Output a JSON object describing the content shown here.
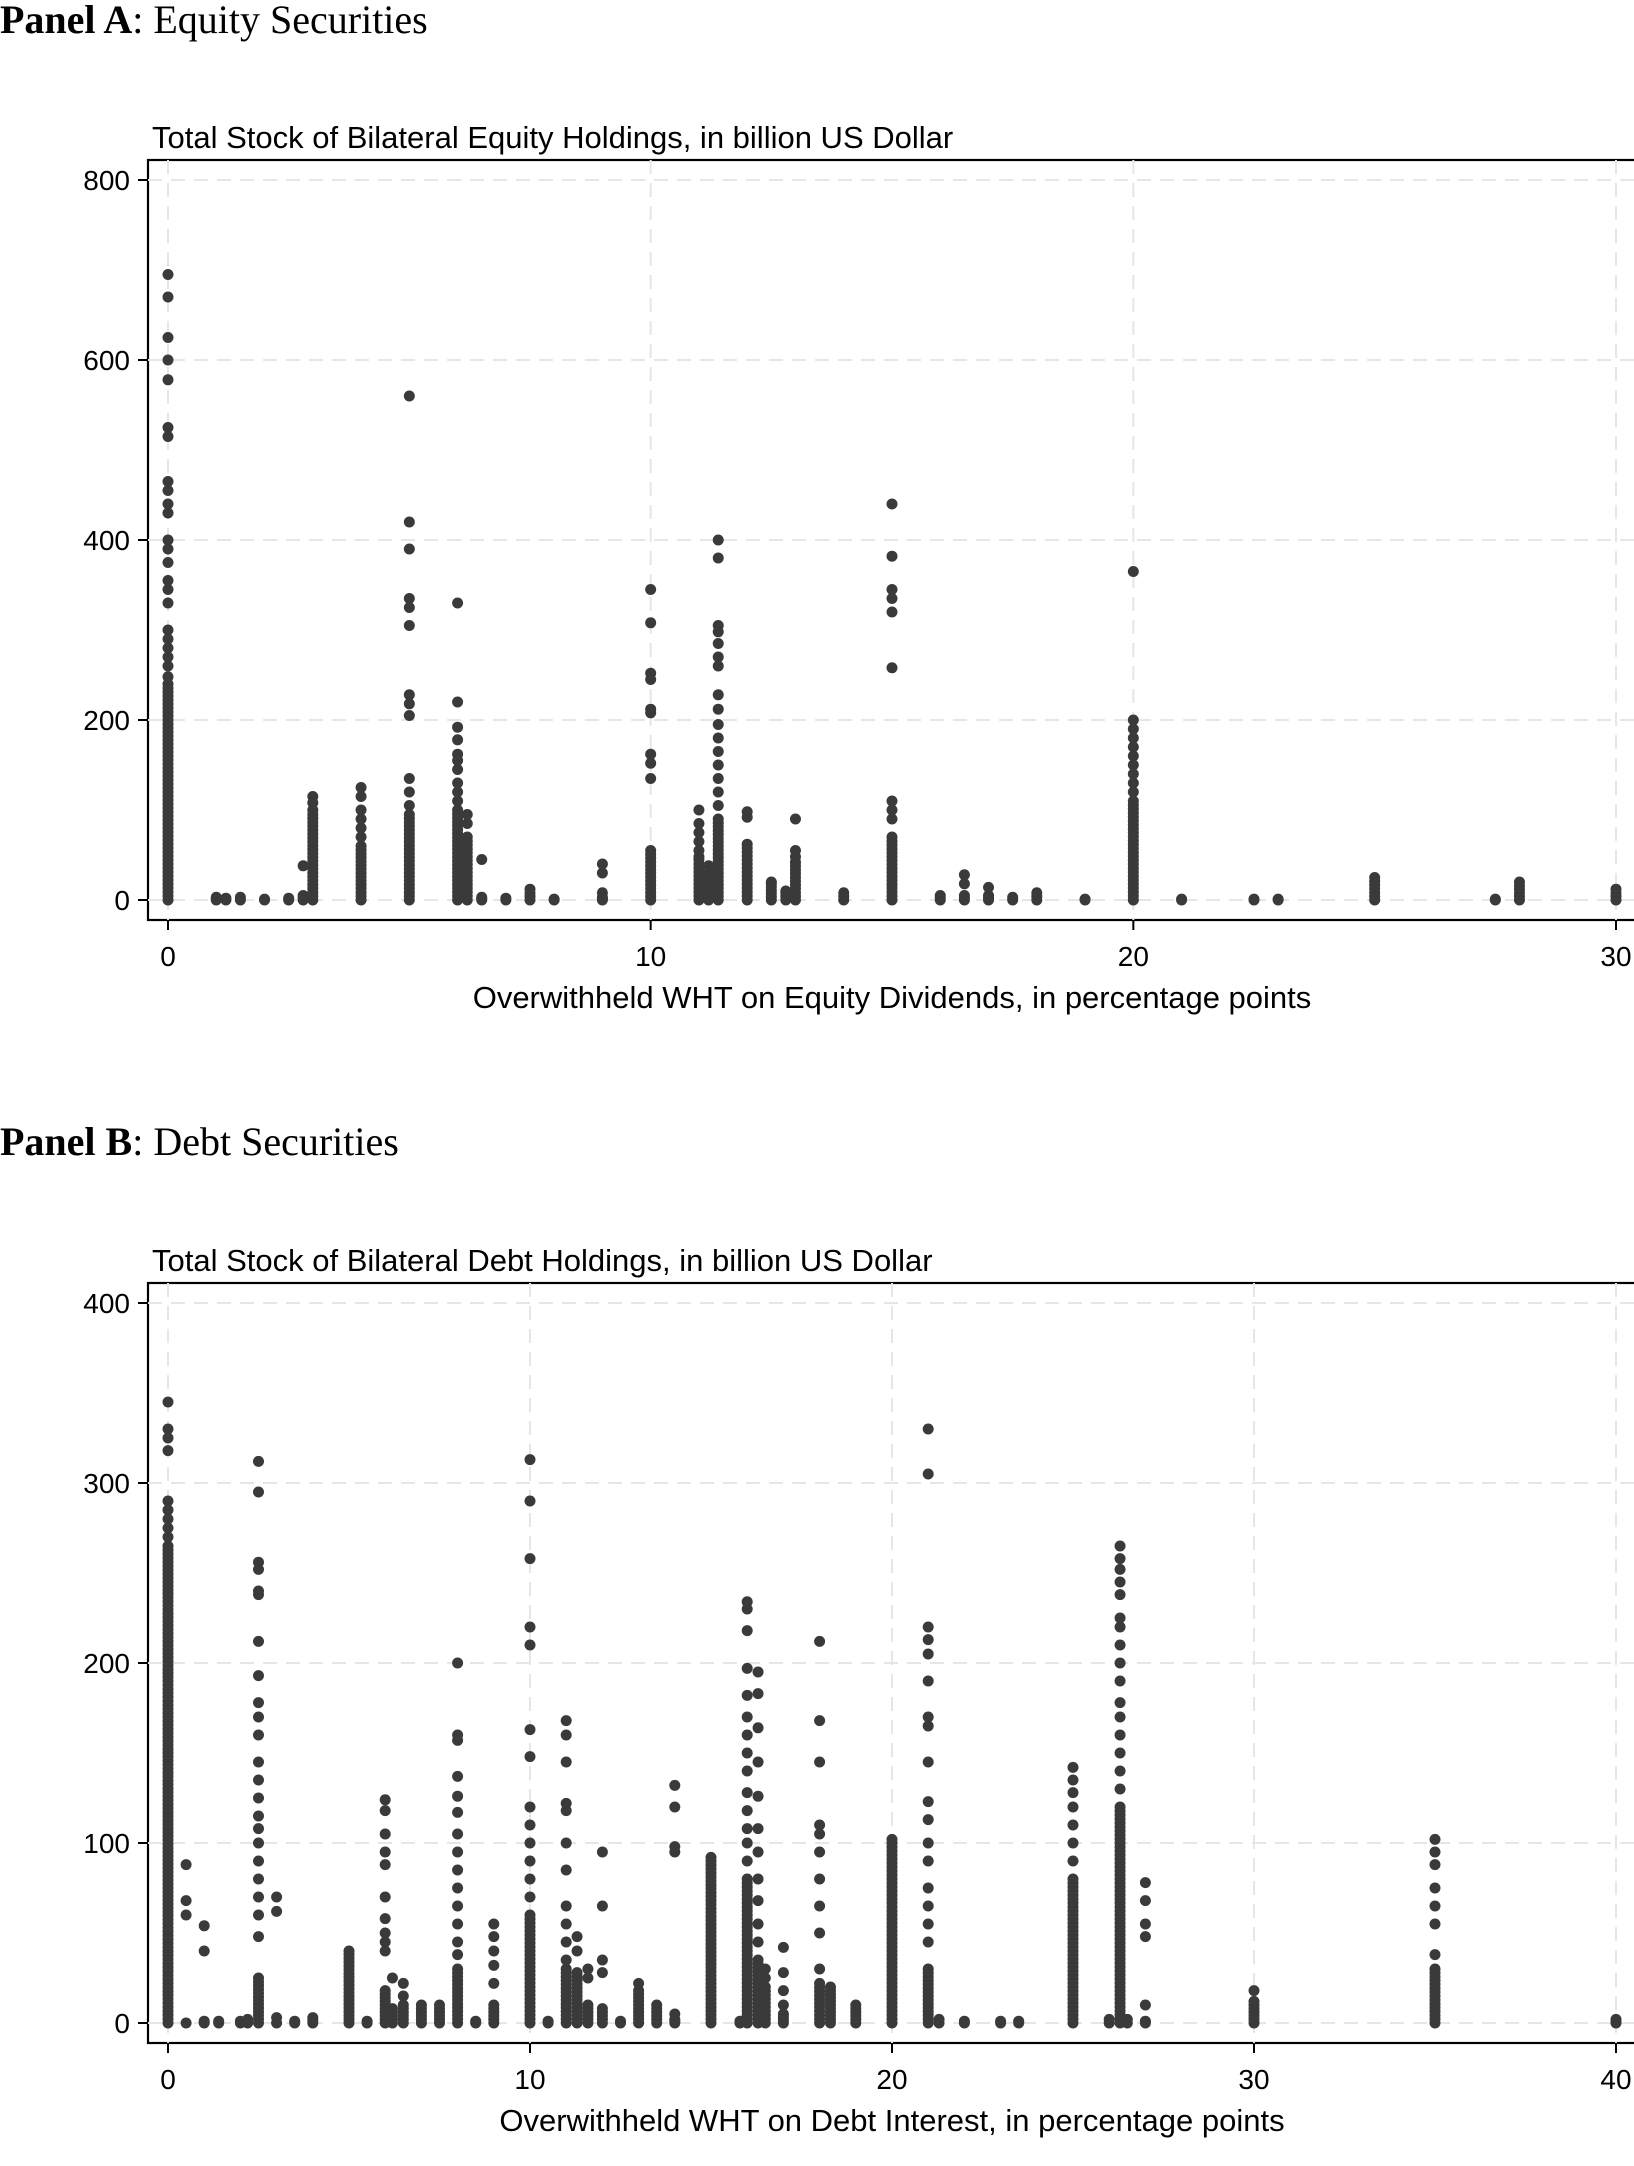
{
  "panels": [
    {
      "prefix": "Panel A",
      "suffix": ": Equity Securities"
    },
    {
      "prefix": "Panel B",
      "suffix": ": Debt Securities"
    }
  ],
  "chart_data": [
    {
      "type": "scatter",
      "title": "Total Stock of Bilateral Equity Holdings, in billion US Dollar",
      "xlabel": "Overwithheld WHT on Equity Dividends, in percentage points",
      "ylabel": "",
      "xlim": [
        0,
        30
      ],
      "ylim": [
        0,
        800
      ],
      "xticks": [
        0,
        10,
        20,
        30
      ],
      "yticks": [
        0,
        200,
        400,
        600,
        800
      ],
      "grid": true,
      "marker_color": "#3a3a3a",
      "columns": [
        {
          "x": 0,
          "dense_max": 240,
          "points": [
            695,
            670,
            625,
            600,
            578,
            525,
            515,
            465,
            455,
            440,
            430,
            400,
            390,
            375,
            355,
            345,
            330,
            300,
            290,
            280,
            270,
            260,
            248
          ]
        },
        {
          "x": 1,
          "dense_max": 0,
          "points": [
            3,
            1
          ]
        },
        {
          "x": 1.2,
          "dense_max": 0,
          "points": [
            2
          ]
        },
        {
          "x": 1.5,
          "dense_max": 0,
          "points": [
            3
          ]
        },
        {
          "x": 2,
          "dense_max": 0,
          "points": [
            1
          ]
        },
        {
          "x": 2.5,
          "dense_max": 0,
          "points": [
            2
          ]
        },
        {
          "x": 2.8,
          "dense_max": 5,
          "points": [
            38
          ]
        },
        {
          "x": 3,
          "dense_max": 95,
          "points": [
            115,
            108,
            100
          ]
        },
        {
          "x": 4,
          "dense_max": 60,
          "points": [
            125,
            115,
            100,
            90,
            80,
            70
          ]
        },
        {
          "x": 5,
          "dense_max": 95,
          "points": [
            560,
            420,
            390,
            335,
            325,
            305,
            228,
            218,
            205,
            135,
            120,
            105
          ]
        },
        {
          "x": 6,
          "dense_max": 100,
          "points": [
            330,
            220,
            192,
            178,
            162,
            155,
            145,
            130,
            120,
            110
          ]
        },
        {
          "x": 6.2,
          "dense_max": 70,
          "points": [
            95,
            85
          ]
        },
        {
          "x": 6.5,
          "dense_max": 3,
          "points": [
            45
          ]
        },
        {
          "x": 7,
          "dense_max": 0,
          "points": [
            2
          ]
        },
        {
          "x": 7.5,
          "dense_max": 8,
          "points": [
            12
          ]
        },
        {
          "x": 8,
          "dense_max": 0,
          "points": [
            1
          ]
        },
        {
          "x": 9,
          "dense_max": 3,
          "points": [
            40,
            30,
            8
          ]
        },
        {
          "x": 10,
          "dense_max": 55,
          "points": [
            345,
            308,
            252,
            245,
            212,
            208,
            162,
            152,
            135
          ]
        },
        {
          "x": 11,
          "dense_max": 40,
          "points": [
            100,
            85,
            75,
            65,
            55,
            48,
            45
          ]
        },
        {
          "x": 11.2,
          "dense_max": 30,
          "points": [
            38
          ]
        },
        {
          "x": 11.4,
          "dense_max": 90,
          "points": [
            400,
            380,
            305,
            298,
            285,
            270,
            260,
            228,
            212,
            195,
            180,
            165,
            150,
            135,
            120,
            105
          ]
        },
        {
          "x": 12,
          "dense_max": 62,
          "points": [
            98,
            92
          ]
        },
        {
          "x": 12.5,
          "dense_max": 18,
          "points": [
            20
          ]
        },
        {
          "x": 12.8,
          "dense_max": 8,
          "points": [
            10
          ]
        },
        {
          "x": 13,
          "dense_max": 42,
          "points": [
            90,
            55,
            48
          ]
        },
        {
          "x": 14,
          "dense_max": 8,
          "points": []
        },
        {
          "x": 15,
          "dense_max": 70,
          "points": [
            440,
            382,
            345,
            335,
            320,
            258,
            110,
            100,
            90
          ]
        },
        {
          "x": 16,
          "dense_max": 5,
          "points": []
        },
        {
          "x": 16.5,
          "dense_max": 5,
          "points": [
            28,
            18
          ]
        },
        {
          "x": 17,
          "dense_max": 5,
          "points": [
            14
          ]
        },
        {
          "x": 17.5,
          "dense_max": 0,
          "points": [
            3
          ]
        },
        {
          "x": 18,
          "dense_max": 8,
          "points": []
        },
        {
          "x": 19,
          "dense_max": 0,
          "points": [
            1
          ]
        },
        {
          "x": 20,
          "dense_max": 110,
          "points": [
            365,
            200,
            190,
            180,
            170,
            160,
            150,
            140,
            130,
            120
          ]
        },
        {
          "x": 21,
          "dense_max": 0,
          "points": [
            1
          ]
        },
        {
          "x": 22.5,
          "dense_max": 0,
          "points": [
            1
          ]
        },
        {
          "x": 23,
          "dense_max": 0,
          "points": [
            1
          ]
        },
        {
          "x": 25,
          "dense_max": 25,
          "points": []
        },
        {
          "x": 27.5,
          "dense_max": 0,
          "points": [
            1
          ]
        },
        {
          "x": 28,
          "dense_max": 20,
          "points": []
        },
        {
          "x": 30,
          "dense_max": 12,
          "points": []
        }
      ]
    },
    {
      "type": "scatter",
      "title": "Total Stock of Bilateral Debt Holdings, in billion US Dollar",
      "xlabel": "Overwithheld WHT on Debt Interest, in percentage points",
      "ylabel": "",
      "xlim": [
        0,
        40
      ],
      "ylim": [
        0,
        400
      ],
      "xticks": [
        0,
        10,
        20,
        30,
        40
      ],
      "yticks": [
        0,
        100,
        200,
        300,
        400
      ],
      "grid": true,
      "marker_color": "#3a3a3a",
      "columns": [
        {
          "x": 0,
          "dense_max": 265,
          "points": [
            345,
            330,
            325,
            318,
            290,
            285,
            280,
            275,
            270
          ]
        },
        {
          "x": 0.5,
          "dense_max": 0,
          "points": [
            88,
            68,
            60
          ]
        },
        {
          "x": 1,
          "dense_max": 0,
          "points": [
            54,
            40,
            1
          ]
        },
        {
          "x": 1.4,
          "dense_max": 0,
          "points": [
            1
          ]
        },
        {
          "x": 2,
          "dense_max": 0,
          "points": [
            1
          ]
        },
        {
          "x": 2.2,
          "dense_max": 0,
          "points": [
            2
          ]
        },
        {
          "x": 2.5,
          "dense_max": 25,
          "points": [
            312,
            295,
            256,
            252,
            240,
            238,
            212,
            193,
            178,
            170,
            160,
            145,
            135,
            125,
            115,
            108,
            100,
            90,
            80,
            70,
            60,
            48
          ]
        },
        {
          "x": 3,
          "dense_max": 0,
          "points": [
            70,
            62,
            3
          ]
        },
        {
          "x": 3.5,
          "dense_max": 0,
          "points": [
            1
          ]
        },
        {
          "x": 4,
          "dense_max": 3,
          "points": []
        },
        {
          "x": 5,
          "dense_max": 38,
          "points": [
            40
          ]
        },
        {
          "x": 5.5,
          "dense_max": 0,
          "points": [
            1
          ]
        },
        {
          "x": 6,
          "dense_max": 18,
          "points": [
            124,
            118,
            105,
            95,
            88,
            70,
            58,
            50,
            45,
            40
          ]
        },
        {
          "x": 6.2,
          "dense_max": 8,
          "points": [
            25
          ]
        },
        {
          "x": 6.5,
          "dense_max": 10,
          "points": [
            22,
            15
          ]
        },
        {
          "x": 7,
          "dense_max": 10,
          "points": []
        },
        {
          "x": 7.5,
          "dense_max": 10,
          "points": []
        },
        {
          "x": 8,
          "dense_max": 30,
          "points": [
            200,
            160,
            157,
            137,
            126,
            117,
            105,
            95,
            85,
            75,
            65,
            55,
            45,
            38
          ]
        },
        {
          "x": 8.5,
          "dense_max": 0,
          "points": [
            1
          ]
        },
        {
          "x": 9,
          "dense_max": 10,
          "points": [
            55,
            48,
            40,
            32,
            22
          ]
        },
        {
          "x": 10,
          "dense_max": 60,
          "points": [
            313,
            290,
            258,
            220,
            210,
            163,
            148,
            120,
            110,
            100,
            90,
            80,
            70
          ]
        },
        {
          "x": 10.5,
          "dense_max": 0,
          "points": [
            1
          ]
        },
        {
          "x": 11,
          "dense_max": 30,
          "points": [
            168,
            160,
            145,
            122,
            118,
            100,
            85,
            65,
            55,
            45,
            35
          ]
        },
        {
          "x": 11.3,
          "dense_max": 28,
          "points": [
            48,
            40
          ]
        },
        {
          "x": 11.6,
          "dense_max": 10,
          "points": [
            30,
            25
          ]
        },
        {
          "x": 12,
          "dense_max": 8,
          "points": [
            95,
            65,
            35,
            28
          ]
        },
        {
          "x": 12.5,
          "dense_max": 0,
          "points": [
            1
          ]
        },
        {
          "x": 13,
          "dense_max": 18,
          "points": [
            22
          ]
        },
        {
          "x": 13.5,
          "dense_max": 8,
          "points": [
            10
          ]
        },
        {
          "x": 14,
          "dense_max": 2,
          "points": [
            132,
            120,
            98,
            95,
            5
          ]
        },
        {
          "x": 15,
          "dense_max": 90,
          "points": [
            92
          ]
        },
        {
          "x": 15.8,
          "dense_max": 0,
          "points": [
            1
          ]
        },
        {
          "x": 16,
          "dense_max": 80,
          "points": [
            234,
            230,
            218,
            197,
            182,
            170,
            160,
            150,
            140,
            128,
            118,
            108,
            100,
            90
          ]
        },
        {
          "x": 16.3,
          "dense_max": 35,
          "points": [
            195,
            183,
            164,
            145,
            126,
            108,
            95,
            80,
            68,
            55,
            45
          ]
        },
        {
          "x": 16.5,
          "dense_max": 20,
          "points": [
            30,
            25
          ]
        },
        {
          "x": 17,
          "dense_max": 5,
          "points": [
            42,
            28,
            18,
            10
          ]
        },
        {
          "x": 18,
          "dense_max": 22,
          "points": [
            212,
            168,
            145,
            110,
            105,
            95,
            80,
            65,
            50,
            30
          ]
        },
        {
          "x": 18.3,
          "dense_max": 18,
          "points": [
            20
          ]
        },
        {
          "x": 19,
          "dense_max": 10,
          "points": []
        },
        {
          "x": 20,
          "dense_max": 100,
          "points": [
            102
          ]
        },
        {
          "x": 21,
          "dense_max": 30,
          "points": [
            330,
            305,
            220,
            213,
            205,
            190,
            170,
            165,
            145,
            123,
            113,
            100,
            90,
            75,
            65,
            55,
            45
          ]
        },
        {
          "x": 21.3,
          "dense_max": 0,
          "points": [
            2
          ]
        },
        {
          "x": 22,
          "dense_max": 0,
          "points": [
            1
          ]
        },
        {
          "x": 23,
          "dense_max": 0,
          "points": [
            1
          ]
        },
        {
          "x": 23.5,
          "dense_max": 0,
          "points": [
            1
          ]
        },
        {
          "x": 25,
          "dense_max": 80,
          "points": [
            142,
            135,
            128,
            120,
            110,
            100,
            90
          ]
        },
        {
          "x": 26,
          "dense_max": 0,
          "points": [
            2
          ]
        },
        {
          "x": 26.3,
          "dense_max": 120,
          "points": [
            265,
            258,
            252,
            245,
            238,
            225,
            220,
            210,
            200,
            190,
            178,
            170,
            160,
            150,
            140,
            130
          ]
        },
        {
          "x": 26.5,
          "dense_max": 0,
          "points": [
            2
          ]
        },
        {
          "x": 27,
          "dense_max": 0,
          "points": [
            78,
            68,
            55,
            48,
            10,
            1
          ]
        },
        {
          "x": 30,
          "dense_max": 12,
          "points": [
            18
          ]
        },
        {
          "x": 35,
          "dense_max": 30,
          "points": [
            102,
            95,
            88,
            75,
            65,
            55,
            38
          ]
        },
        {
          "x": 40,
          "dense_max": 2,
          "points": []
        }
      ]
    }
  ]
}
